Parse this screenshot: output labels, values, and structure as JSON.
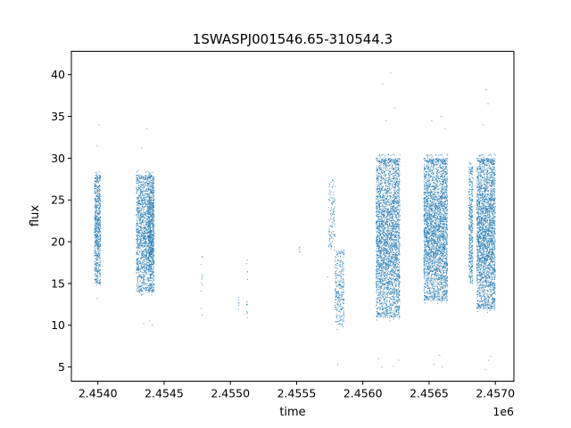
{
  "chart_data": {
    "type": "scatter",
    "title": "1SWASPJ001546.65-310544.3",
    "xlabel": "time",
    "ylabel": "flux",
    "x_offset_label": "1e6",
    "xlim": [
      2453800,
      2457140
    ],
    "ylim": [
      3.3,
      42.8
    ],
    "x_ticks": [
      2454000,
      2454500,
      2455000,
      2455500,
      2456000,
      2456500,
      2457000
    ],
    "x_tick_labels": [
      "2.4540",
      "2.4545",
      "2.4550",
      "2.4555",
      "2.4560",
      "2.4565",
      "2.4570"
    ],
    "y_ticks": [
      5,
      10,
      15,
      20,
      25,
      30,
      35,
      40
    ],
    "y_tick_labels": [
      "5",
      "10",
      "15",
      "20",
      "25",
      "30",
      "35",
      "40"
    ],
    "grid": false,
    "marker_color": "#1f77b4",
    "series": [
      {
        "description_points": "clusters of flux observations (time, flux range, approximate point count)",
        "clusters": [
          {
            "x_start": 2453975,
            "x_end": 2454020,
            "y_min": 15,
            "y_max": 28,
            "count": 700
          },
          {
            "x_start": 2454290,
            "x_end": 2454380,
            "y_min": 14,
            "y_max": 28,
            "count": 1100
          },
          {
            "x_start": 2454380,
            "x_end": 2454425,
            "y_min": 14,
            "y_max": 28,
            "count": 1000
          },
          {
            "x_start": 2454780,
            "x_end": 2454790,
            "y_min": 10.5,
            "y_max": 18.3,
            "count": 12
          },
          {
            "x_start": 2455060,
            "x_end": 2455070,
            "y_min": 11.5,
            "y_max": 13.5,
            "count": 6
          },
          {
            "x_start": 2455120,
            "x_end": 2455130,
            "y_min": 10.2,
            "y_max": 18,
            "count": 14
          },
          {
            "x_start": 2455515,
            "x_end": 2455525,
            "y_min": 18.5,
            "y_max": 19.5,
            "count": 5
          },
          {
            "x_start": 2455740,
            "x_end": 2455790,
            "y_min": 19,
            "y_max": 27.5,
            "count": 120
          },
          {
            "x_start": 2455790,
            "x_end": 2455860,
            "y_min": 10,
            "y_max": 19,
            "count": 300
          },
          {
            "x_start": 2456100,
            "x_end": 2456280,
            "y_min": 11,
            "y_max": 30,
            "count": 3000
          },
          {
            "x_start": 2456460,
            "x_end": 2456640,
            "y_min": 13,
            "y_max": 30,
            "count": 3000
          },
          {
            "x_start": 2456800,
            "x_end": 2456830,
            "y_min": 15,
            "y_max": 29,
            "count": 400
          },
          {
            "x_start": 2456860,
            "x_end": 2457000,
            "y_min": 12,
            "y_max": 30,
            "count": 2600
          }
        ],
        "outliers": [
          [
            2454010,
            34.0
          ],
          [
            2453990,
            31.5
          ],
          [
            2453995,
            13.2
          ],
          [
            2454370,
            33.5
          ],
          [
            2454330,
            31.2
          ],
          [
            2454345,
            10.2
          ],
          [
            2454390,
            10.5
          ],
          [
            2454410,
            10.0
          ],
          [
            2455735,
            15.8
          ],
          [
            2455810,
            5.3
          ],
          [
            2455850,
            9.8
          ],
          [
            2456150,
            38.9
          ],
          [
            2456175,
            34.5
          ],
          [
            2456210,
            40.2
          ],
          [
            2456240,
            36.0
          ],
          [
            2456120,
            6.0
          ],
          [
            2456145,
            5.0
          ],
          [
            2456230,
            5.1
          ],
          [
            2456270,
            5.8
          ],
          [
            2456520,
            34.5
          ],
          [
            2456590,
            35.0
          ],
          [
            2456620,
            33.5
          ],
          [
            2456535,
            5.3
          ],
          [
            2456600,
            5.0
          ],
          [
            2456580,
            6.4
          ],
          [
            2456930,
            38.2
          ],
          [
            2456945,
            36.5
          ],
          [
            2456910,
            34.0
          ],
          [
            2456925,
            4.7
          ],
          [
            2456950,
            5.8
          ],
          [
            2456965,
            6.3
          ],
          [
            2456835,
            27.5
          ],
          [
            2456805,
            29.5
          ]
        ]
      }
    ]
  }
}
